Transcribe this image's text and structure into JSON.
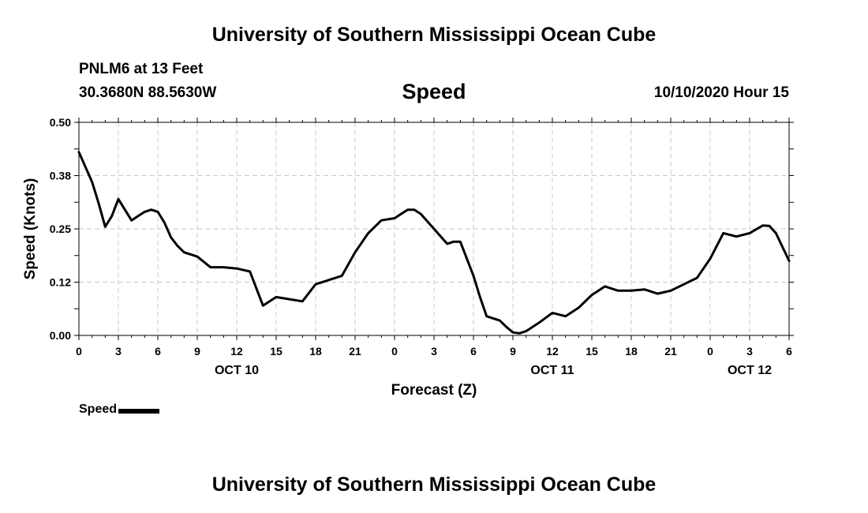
{
  "header": {
    "title": "University of Southern Mississippi Ocean Cube",
    "station": "PNLM6 at 13 Feet",
    "coords": "30.3680N 88.5630W",
    "parameter": "Speed",
    "datetime": "10/10/2020 Hour 15"
  },
  "footer": {
    "title": "University of Southern Mississippi Ocean Cube"
  },
  "chart_data": {
    "type": "line",
    "title": "Speed",
    "xlabel": "Forecast (Z)",
    "ylabel": "Speed (Knots)",
    "xlim": [
      0,
      54
    ],
    "ylim": [
      0,
      0.5
    ],
    "yticks": [
      {
        "v": 0.0,
        "label": "0.00"
      },
      {
        "v": 0.125,
        "label": "0.12"
      },
      {
        "v": 0.25,
        "label": "0.25"
      },
      {
        "v": 0.375,
        "label": "0.38"
      },
      {
        "v": 0.5,
        "label": "0.50"
      }
    ],
    "xticks": [
      {
        "h": 0,
        "label": "0"
      },
      {
        "h": 3,
        "label": "3"
      },
      {
        "h": 6,
        "label": "6"
      },
      {
        "h": 9,
        "label": "9"
      },
      {
        "h": 12,
        "label": "12"
      },
      {
        "h": 15,
        "label": "15"
      },
      {
        "h": 18,
        "label": "18"
      },
      {
        "h": 21,
        "label": "21"
      },
      {
        "h": 24,
        "label": "0"
      },
      {
        "h": 27,
        "label": "3"
      },
      {
        "h": 30,
        "label": "6"
      },
      {
        "h": 33,
        "label": "9"
      },
      {
        "h": 36,
        "label": "12"
      },
      {
        "h": 39,
        "label": "15"
      },
      {
        "h": 42,
        "label": "18"
      },
      {
        "h": 45,
        "label": "21"
      },
      {
        "h": 48,
        "label": "0"
      },
      {
        "h": 51,
        "label": "3"
      },
      {
        "h": 54,
        "label": "6"
      }
    ],
    "day_labels": [
      {
        "h": 12,
        "label": "OCT 10"
      },
      {
        "h": 36,
        "label": "OCT 11"
      },
      {
        "h": 51,
        "label": "OCT 12"
      }
    ],
    "grid": true,
    "legend_position": "bottom-left",
    "series": [
      {
        "name": "Speed",
        "color": "#000000",
        "points": [
          [
            0,
            0.43
          ],
          [
            1,
            0.36
          ],
          [
            1.5,
            0.31
          ],
          [
            2,
            0.255
          ],
          [
            2.5,
            0.28
          ],
          [
            3,
            0.32
          ],
          [
            3.5,
            0.295
          ],
          [
            4,
            0.27
          ],
          [
            4.5,
            0.28
          ],
          [
            5,
            0.29
          ],
          [
            5.5,
            0.295
          ],
          [
            6,
            0.29
          ],
          [
            6.5,
            0.265
          ],
          [
            7,
            0.23
          ],
          [
            7.5,
            0.21
          ],
          [
            8,
            0.195
          ],
          [
            9,
            0.185
          ],
          [
            10,
            0.16
          ],
          [
            11,
            0.16
          ],
          [
            12,
            0.157
          ],
          [
            13,
            0.15
          ],
          [
            14,
            0.07
          ],
          [
            15,
            0.09
          ],
          [
            16,
            0.085
          ],
          [
            17,
            0.08
          ],
          [
            18,
            0.12
          ],
          [
            19,
            0.13
          ],
          [
            20,
            0.14
          ],
          [
            21,
            0.195
          ],
          [
            22,
            0.24
          ],
          [
            23,
            0.27
          ],
          [
            24,
            0.275
          ],
          [
            25,
            0.295
          ],
          [
            25.5,
            0.295
          ],
          [
            26,
            0.285
          ],
          [
            27,
            0.25
          ],
          [
            28,
            0.215
          ],
          [
            28.5,
            0.22
          ],
          [
            29,
            0.22
          ],
          [
            30,
            0.14
          ],
          [
            30.5,
            0.09
          ],
          [
            31,
            0.045
          ],
          [
            31.5,
            0.04
          ],
          [
            32,
            0.035
          ],
          [
            32.5,
            0.02
          ],
          [
            33,
            0.007
          ],
          [
            33.5,
            0.005
          ],
          [
            34,
            0.01
          ],
          [
            35,
            0.03
          ],
          [
            36,
            0.053
          ],
          [
            37,
            0.045
          ],
          [
            38,
            0.065
          ],
          [
            39,
            0.095
          ],
          [
            40,
            0.115
          ],
          [
            41,
            0.105
          ],
          [
            42,
            0.105
          ],
          [
            43,
            0.108
          ],
          [
            44,
            0.098
          ],
          [
            45,
            0.105
          ],
          [
            46,
            0.12
          ],
          [
            47,
            0.135
          ],
          [
            48,
            0.18
          ],
          [
            49,
            0.24
          ],
          [
            50,
            0.232
          ],
          [
            51,
            0.24
          ],
          [
            52,
            0.258
          ],
          [
            52.5,
            0.257
          ],
          [
            53,
            0.24
          ],
          [
            54,
            0.175
          ]
        ]
      }
    ]
  }
}
